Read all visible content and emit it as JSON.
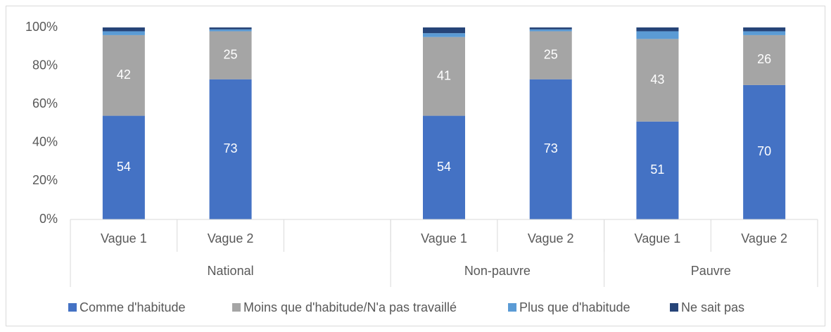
{
  "chart_data": {
    "type": "stacked_bar",
    "categories": [
      "Vague 1",
      "Vague 2",
      null,
      "Vague 1",
      "Vague 2",
      "Vague 1",
      "Vague 2"
    ],
    "groups": [
      {
        "name": "National",
        "size": 3
      },
      {
        "name": "Non-pauvre",
        "size": 2
      },
      {
        "name": "Pauvre",
        "size": 2
      }
    ],
    "series": [
      {
        "name": "Comme d'habitude",
        "color": "#4472c4",
        "values": [
          54,
          73,
          null,
          54,
          73,
          51,
          70
        ]
      },
      {
        "name": "Moins que d'habitude/N'a pas travaillé",
        "color": "#a5a5a5",
        "values": [
          42,
          25,
          null,
          41,
          25,
          43,
          26
        ]
      },
      {
        "name": "Plus que d'habitude",
        "color": "#5b9bd5",
        "values": [
          2,
          1,
          null,
          2,
          1,
          4,
          2
        ]
      },
      {
        "name": "Ne sait pas",
        "color": "#264478",
        "values": [
          2,
          1,
          null,
          3,
          1,
          2,
          2
        ]
      }
    ],
    "data_labels_series": [
      0,
      1
    ],
    "ylim": [
      0,
      100
    ],
    "yticks": [
      {
        "value": 0,
        "label": "0%"
      },
      {
        "value": 20,
        "label": "20%"
      },
      {
        "value": 40,
        "label": "40%"
      },
      {
        "value": 60,
        "label": "60%"
      },
      {
        "value": 80,
        "label": "80%"
      },
      {
        "value": 100,
        "label": "100%"
      }
    ],
    "legend": "bottom"
  }
}
